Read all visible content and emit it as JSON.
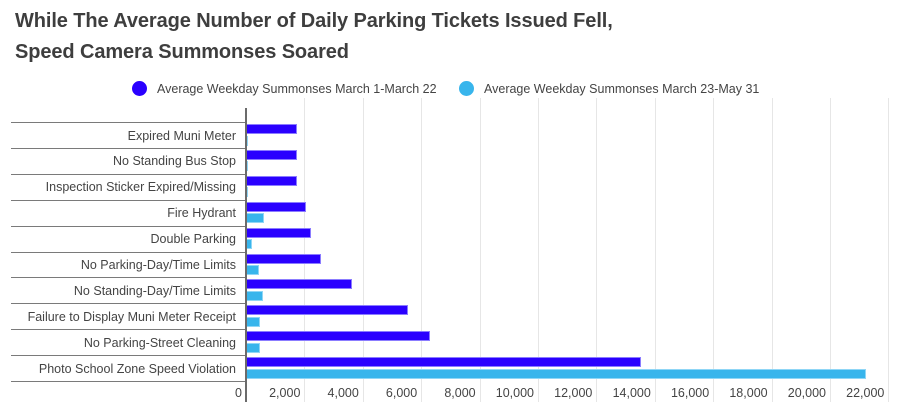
{
  "title_line1": "While The Average Number of Daily Parking Tickets Issued Fell,",
  "title_line2": "Speed Camera Summonses Soared",
  "legend": [
    {
      "label": "Average Weekday Summonses March 1-March 22",
      "color": "#2a00ff"
    },
    {
      "label": "Average Weekday Summonses March 23-May 31",
      "color": "#38b5ec"
    }
  ],
  "chart_data": {
    "type": "bar",
    "orientation": "horizontal",
    "title": "While The Average Number of Daily Parking Tickets Issued Fell, Speed Camera Summonses Soared",
    "xlabel": "",
    "ylabel": "",
    "xlim": [
      0,
      22000
    ],
    "grid": true,
    "legend_position": "top",
    "categories": [
      "Expired Muni Meter",
      "No Standing Bus Stop",
      "Inspection Sticker Expired/Missing",
      "Fire Hydrant",
      "Double Parking",
      "No Parking-Day/Time Limits",
      "No Standing-Day/Time Limits",
      "Failure to Display Muni Meter Receipt",
      "No Parking-Street Cleaning",
      "Photo School Zone Speed Violation"
    ],
    "series": [
      {
        "name": "Average Weekday Summonses March 1-March 22",
        "color": "#2a00ff",
        "values": [
          1750,
          1750,
          1750,
          2050,
          2220,
          2570,
          3630,
          5550,
          6310,
          13530
        ]
      },
      {
        "name": "Average Weekday Summonses March 23-May 31",
        "color": "#38b5ec",
        "values": [
          60,
          60,
          50,
          620,
          200,
          450,
          580,
          480,
          480,
          21230
        ]
      }
    ],
    "x_ticks": [
      "0",
      "2,000",
      "4,000",
      "6,000",
      "8,000",
      "10,000",
      "12,000",
      "14,000",
      "16,000",
      "18,000",
      "20,000",
      "22,000"
    ],
    "x_tick_values": [
      0,
      2000,
      4000,
      6000,
      8000,
      10000,
      12000,
      14000,
      16000,
      18000,
      20000,
      22000
    ]
  }
}
